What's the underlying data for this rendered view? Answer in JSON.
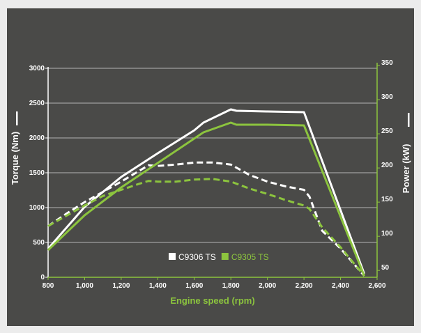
{
  "chart_data": {
    "type": "line",
    "title": "",
    "xlabel": "Engine speed  (rpm)",
    "ylabel": "Torque (Nm)",
    "y2label": "Power (kW)",
    "xlim": [
      800,
      2600
    ],
    "ylim": [
      0,
      3000
    ],
    "y2lim": [
      40,
      350
    ],
    "x_ticks": [
      "800",
      "1,000",
      "1,200",
      "1,400",
      "1,600",
      "1,800",
      "2,000",
      "2,200",
      "2,400",
      "2,600"
    ],
    "x_tick_values": [
      800,
      1000,
      1200,
      1400,
      1600,
      1800,
      2000,
      2200,
      2400,
      2600
    ],
    "y_ticks": [
      "0",
      "500",
      "1000",
      "1500",
      "2000",
      "2500",
      "3000"
    ],
    "y_tick_values": [
      0,
      500,
      1000,
      1500,
      2000,
      2500,
      3000
    ],
    "y2_ticks": [
      "50",
      "100",
      "150",
      "200",
      "250",
      "300",
      "350"
    ],
    "y2_tick_values": [
      50,
      100,
      150,
      200,
      250,
      300,
      350
    ],
    "grid": "horizontal",
    "legend_position": "bottom-center",
    "series": [
      {
        "name": "C9306 TS",
        "color": "#ffffff",
        "torque": {
          "x": [
            800,
            1000,
            1200,
            1400,
            1600,
            1650,
            1800,
            1830,
            2000,
            2200,
            2530
          ],
          "y": [
            410,
            1010,
            1440,
            1780,
            2110,
            2220,
            2410,
            2390,
            2380,
            2370,
            50
          ]
        },
        "power": {
          "x": [
            800,
            900,
            1000,
            1100,
            1200,
            1300,
            1350,
            1400,
            1500,
            1600,
            1700,
            1800,
            1900,
            2000,
            2100,
            2200,
            2230,
            2300,
            2400,
            2530
          ],
          "y": [
            115,
            133,
            150,
            165,
            180,
            196,
            204,
            203,
            205,
            208,
            208,
            205,
            190,
            180,
            173,
            168,
            158,
            108,
            82,
            42
          ]
        }
      },
      {
        "name": "C9305 TS",
        "color": "#8cc43e",
        "torque": {
          "x": [
            800,
            1000,
            1200,
            1400,
            1650,
            1800,
            1830,
            2000,
            2200,
            2530
          ],
          "y": [
            390,
            890,
            1290,
            1640,
            2080,
            2220,
            2190,
            2190,
            2180,
            20
          ]
        },
        "power": {
          "x": [
            800,
            900,
            1000,
            1100,
            1200,
            1300,
            1350,
            1400,
            1500,
            1600,
            1700,
            1800,
            1900,
            2000,
            2100,
            2200,
            2230,
            2300,
            2400,
            2530
          ],
          "y": [
            115,
            130,
            145,
            159,
            168,
            177,
            181,
            180,
            180,
            183,
            184,
            180,
            170,
            162,
            153,
            145,
            140,
            113,
            84,
            42
          ]
        }
      }
    ]
  }
}
